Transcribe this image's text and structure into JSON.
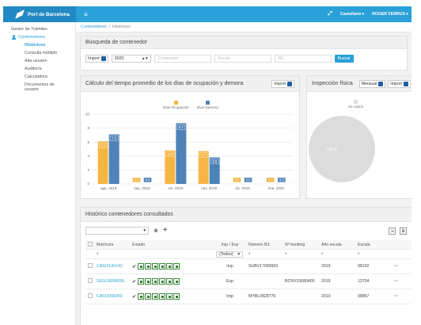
{
  "topbar": {
    "brand": "Port de Barcelona",
    "language": "Castellano",
    "user": "ROGER FERRUS",
    "colors": {
      "bar": "#2aa0d8",
      "brand_bg": "#2389c2"
    }
  },
  "sidebar": {
    "items": [
      {
        "label": "Gestor de Trámites"
      },
      {
        "label": "Contenedores"
      },
      {
        "label": "Históricos"
      },
      {
        "label": "Consulta múltiple"
      },
      {
        "label": "Alta usuario"
      },
      {
        "label": "Auditoría"
      },
      {
        "label": "Calculadora"
      },
      {
        "label": "Documentos de usuario"
      }
    ]
  },
  "breadcrumb": {
    "parent": "Contenedores",
    "sep": "/",
    "current": "Históricos"
  },
  "search_panel": {
    "title": "Búsqueda de contenedor",
    "type_label": "Import",
    "year": "2020",
    "placeholders": {
      "container": "Contenedor",
      "escala": "Escala",
      "bl": "B/L"
    },
    "search_button": "Buscar"
  },
  "chart_panel": {
    "title": "Cálculo del tiempo promedio de los días de ocupación y demora",
    "toggle_label": "Import"
  },
  "chart_data": {
    "type": "bar",
    "categories": [
      "ago. 2019",
      "sep. 2019",
      "oct. 2019",
      "nov. 2019",
      "dic. 2019",
      "ene. 2020"
    ],
    "series": [
      {
        "name": "Días Ocupación",
        "values": [
          6.1,
          0.0,
          4.8,
          4.7,
          0.0,
          0.0
        ],
        "color": "#f6b543"
      },
      {
        "name": "Días Demora",
        "values": [
          7.1,
          0.0,
          8.7,
          3.8,
          0.0,
          0.0
        ],
        "color": "#4e83b8"
      }
    ],
    "ylim": [
      0,
      10
    ],
    "yticks": [
      0,
      2,
      4,
      6,
      8,
      10
    ],
    "grid": true,
    "legend": "top-center"
  },
  "inspection_panel": {
    "title": "Inspección física",
    "toggle_monthly": "Mensual",
    "toggle_import": "Import",
    "legend_label": "Sin datos",
    "pie_label": "100 %",
    "pie_value": 100
  },
  "history_panel": {
    "title": "Histórico contenedores consultados",
    "columns": [
      "Matrícula",
      "Estado",
      "Imp / Exp",
      "Número B/L",
      "Nº booking",
      "Año escala",
      "Escala"
    ],
    "filter_select": "(Todos)",
    "rows": [
      {
        "matricula": "CAIU3140142",
        "impexp": "Imp",
        "bl": "SUBV17099900",
        "booking": "",
        "anio": "2019",
        "escala": "98192"
      },
      {
        "matricula": "SEGU9058536",
        "impexp": "Exp",
        "bl": "",
        "booking": "BCNV15680400",
        "anio": "2019",
        "escala": "13704"
      },
      {
        "matricula": "CAIU2096050",
        "impexp": "Imp",
        "bl": "MYBL0828776",
        "booking": "",
        "anio": "2019",
        "escala": "98867"
      }
    ]
  }
}
